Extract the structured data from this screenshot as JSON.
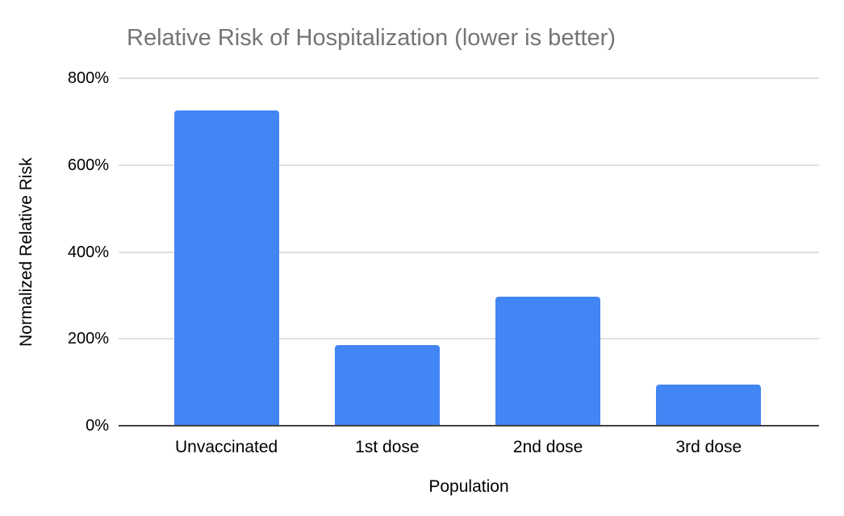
{
  "title": "Relative Risk of Hospitalization (lower is better)",
  "chart_data": {
    "type": "bar",
    "title": "Relative Risk of Hospitalization (lower is better)",
    "xlabel": "Population",
    "ylabel": "Normalized Relative Risk",
    "categories": [
      "Unvaccinated",
      "1st dose",
      "2nd dose",
      "3rd dose"
    ],
    "values": [
      725,
      185,
      297,
      95
    ],
    "value_unit": "%",
    "ylim": [
      0,
      800
    ],
    "yticks": [
      0,
      200,
      400,
      600,
      800
    ],
    "ytick_labels": [
      "0%",
      "200%",
      "400%",
      "600%",
      "800%"
    ],
    "grid": true,
    "legend": "none",
    "colors": {
      "bar": "#4285f4",
      "gridline": "#e0e0e0",
      "axis_line": "#424242",
      "title": "#757575",
      "labels": "#000000",
      "background": "#ffffff"
    }
  }
}
